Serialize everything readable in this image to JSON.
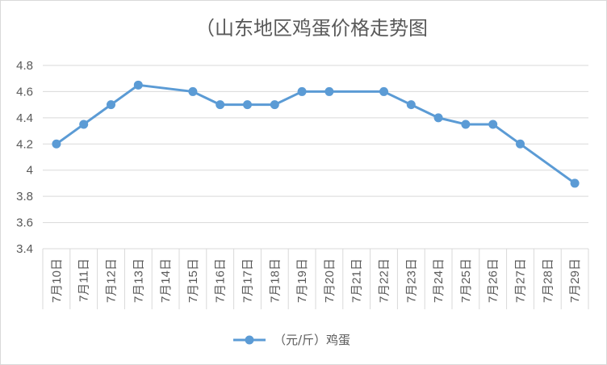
{
  "chart_data": {
    "type": "line",
    "title": "（山东地区鸡蛋价格走势图",
    "categories": [
      "7月10日",
      "7月11日",
      "7月12日",
      "7月13日",
      "7月14日",
      "7月15日",
      "7月16日",
      "7月17日",
      "7月18日",
      "7月19日",
      "7月20日",
      "7月21日",
      "7月22日",
      "7月23日",
      "7月24日",
      "7月25日",
      "7月26日",
      "7月27日",
      "7月28日",
      "7月29日"
    ],
    "series": [
      {
        "name": "（元/斤）鸡蛋",
        "color": "#5b9bd5",
        "values": [
          4.2,
          4.35,
          4.5,
          4.65,
          null,
          4.6,
          4.5,
          4.5,
          4.5,
          4.6,
          4.6,
          null,
          4.6,
          4.5,
          4.4,
          4.35,
          4.35,
          4.2,
          null,
          3.9
        ]
      }
    ],
    "y_ticks": [
      "3.4",
      "3.6",
      "3.8",
      "4",
      "4.2",
      "4.4",
      "4.6",
      "4.8"
    ],
    "ylim": [
      3.4,
      4.8
    ],
    "xlabel": "",
    "ylabel": "",
    "grid": true,
    "legend_position": "bottom",
    "colors": {
      "grid": "#d9d9d9",
      "axis_text": "#595959"
    }
  }
}
